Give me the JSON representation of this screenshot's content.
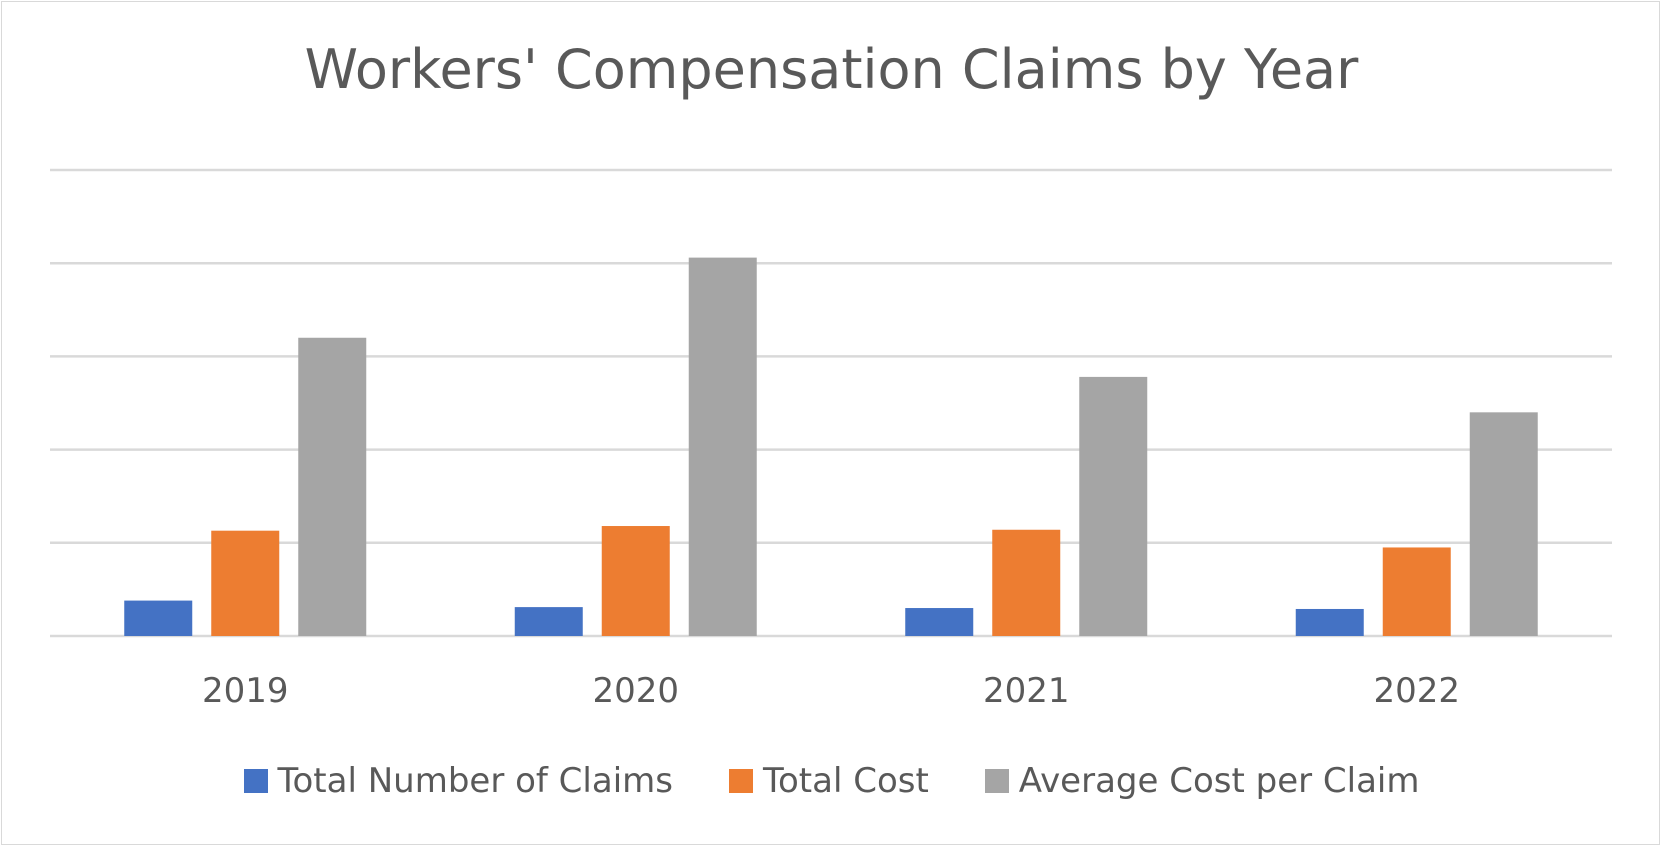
{
  "chart_data": {
    "type": "bar",
    "title": "Workers' Compensation Claims by Year",
    "categories": [
      "2019",
      "2020",
      "2021",
      "2022"
    ],
    "series": [
      {
        "name": "Total Number of Claims",
        "color": "#4472c4",
        "values": [
          38,
          31,
          30,
          29
        ]
      },
      {
        "name": "Total Cost",
        "color": "#ed7d31",
        "values": [
          113,
          118,
          114,
          95
        ]
      },
      {
        "name": "Average Cost per Claim",
        "color": "#a5a5a5",
        "values": [
          320,
          406,
          278,
          240
        ]
      }
    ],
    "ylim": [
      0,
      500
    ],
    "y_gridlines": [
      0,
      100,
      200,
      300,
      400,
      500
    ],
    "y_tick_labels_shown": false,
    "grid": true,
    "legend_position": "bottom"
  }
}
